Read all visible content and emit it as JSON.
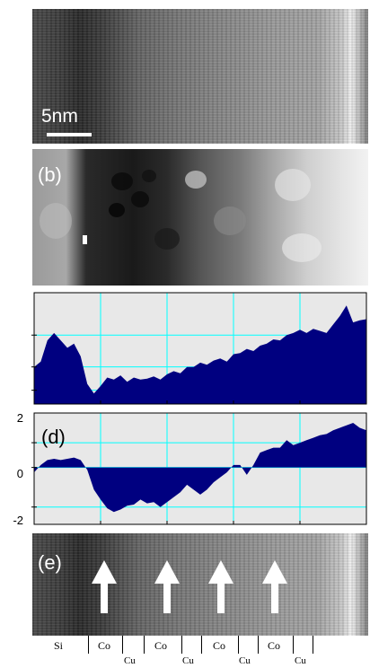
{
  "panels": {
    "a": {
      "scalebar_label": "5nm"
    },
    "b": {
      "label": "(b)"
    },
    "d": {
      "label": "(d)",
      "yticks": [
        "2",
        "0",
        "-2"
      ]
    },
    "e": {
      "label": "(e)"
    }
  },
  "layers": {
    "top_row": [
      "Si",
      "Co",
      "Co",
      "Co",
      "Co"
    ],
    "bottom_row": [
      "Cu",
      "Cu",
      "Cu",
      "Cu"
    ]
  },
  "colors": {
    "fill": "#000080",
    "grid": "#00ffff",
    "plot_bg": "#e8e8e8"
  },
  "chart_data": [
    {
      "type": "area",
      "panel": "c",
      "x": [
        0,
        2,
        4,
        6,
        8,
        10,
        12,
        14,
        16,
        18,
        20,
        22,
        24,
        26,
        28,
        30,
        32,
        34,
        36,
        38,
        40,
        42,
        44,
        46,
        48,
        50,
        52,
        54,
        56,
        58,
        60,
        62,
        64,
        66,
        68,
        70,
        72,
        74,
        76,
        78,
        80,
        82,
        84,
        86,
        88,
        90,
        92,
        94,
        96,
        98,
        100
      ],
      "values": [
        0.3,
        0.35,
        0.55,
        0.62,
        0.55,
        0.48,
        0.52,
        0.4,
        0.14,
        0.05,
        0.12,
        0.2,
        0.18,
        0.22,
        0.16,
        0.2,
        0.18,
        0.19,
        0.21,
        0.18,
        0.23,
        0.26,
        0.24,
        0.3,
        0.3,
        0.34,
        0.32,
        0.36,
        0.38,
        0.35,
        0.42,
        0.43,
        0.47,
        0.45,
        0.5,
        0.52,
        0.56,
        0.55,
        0.6,
        0.62,
        0.65,
        0.62,
        0.66,
        0.64,
        0.62,
        0.7,
        0.78,
        0.88,
        0.72,
        0.74,
        0.75
      ]
    },
    {
      "type": "area",
      "panel": "d",
      "ylim": [
        -2.3,
        2.2
      ],
      "x": [
        0,
        2,
        4,
        6,
        8,
        10,
        12,
        14,
        16,
        18,
        20,
        22,
        24,
        26,
        28,
        30,
        32,
        34,
        36,
        38,
        40,
        42,
        44,
        46,
        48,
        50,
        52,
        54,
        56,
        58,
        60,
        62,
        64,
        66,
        68,
        70,
        72,
        74,
        76,
        78,
        80,
        82,
        84,
        86,
        88,
        90,
        92,
        94,
        96,
        98,
        100
      ],
      "values": [
        -0.2,
        0.1,
        0.3,
        0.35,
        0.3,
        0.35,
        0.4,
        0.3,
        -0.1,
        -0.9,
        -1.3,
        -1.65,
        -1.8,
        -1.7,
        -1.55,
        -1.5,
        -1.3,
        -1.45,
        -1.4,
        -1.6,
        -1.4,
        -1.2,
        -1.0,
        -0.7,
        -0.9,
        -1.1,
        -0.9,
        -0.6,
        -0.4,
        -0.2,
        0.1,
        0.1,
        -0.3,
        0.1,
        0.6,
        0.7,
        0.8,
        0.8,
        1.1,
        0.9,
        1.0,
        1.1,
        1.2,
        1.3,
        1.35,
        1.5,
        1.6,
        1.7,
        1.8,
        1.6,
        1.5
      ]
    }
  ]
}
